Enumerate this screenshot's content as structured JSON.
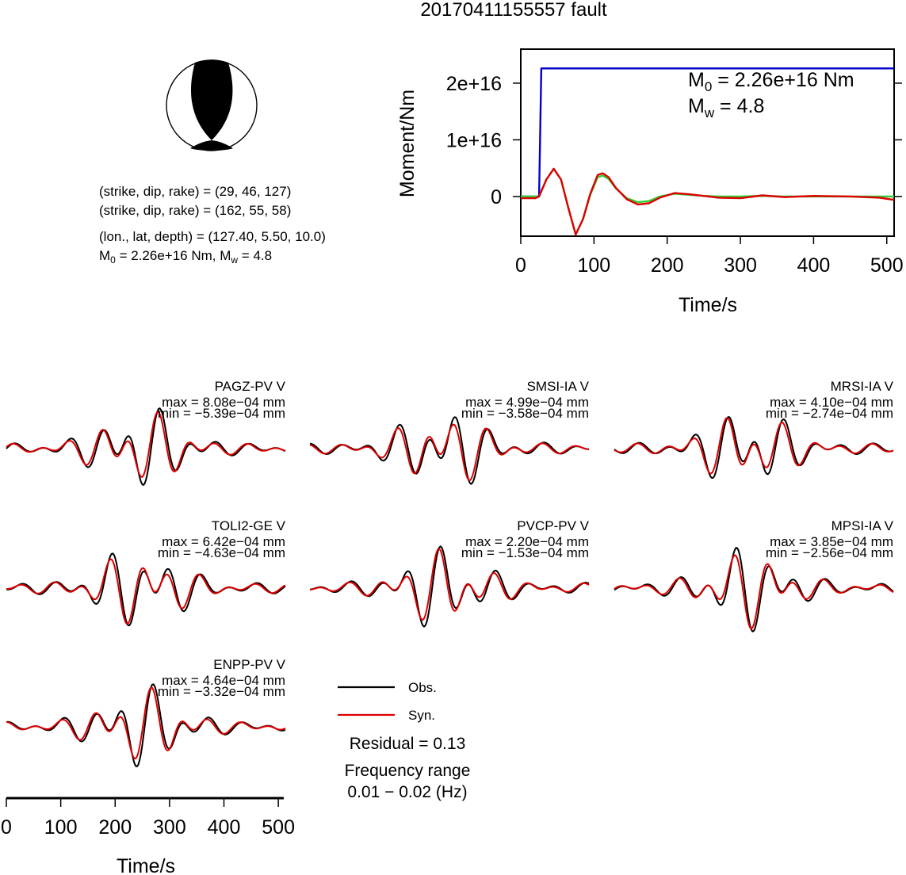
{
  "title": "20170411155557 fault",
  "beachball": {
    "nodal_planes": [
      {
        "strike": 29,
        "dip": 46,
        "rake": 127
      },
      {
        "strike": 162,
        "dip": 55,
        "rake": 58
      }
    ],
    "plane1_text": "(strike, dip, rake) = (29, 46, 127)",
    "plane2_text": "(strike, dip, rake) = (162, 55, 58)",
    "location_text": "(lon., lat, depth) = (127.40, 5.50, 10.0)",
    "moment_text": {
      "m0_sym": "M",
      "m0_sub": "0",
      "m0_val": " = 2.26e+16 Nm, ",
      "mw_sym": "M",
      "mw_sub": "w",
      "mw_val": " = 4.8"
    }
  },
  "moment_plot": {
    "ylabel": "Moment/Nm",
    "xlabel": "Time/s",
    "yticks": [
      "0",
      "1e+16",
      "2e+16"
    ],
    "xticks": [
      "0",
      "100",
      "200",
      "300",
      "400",
      "500"
    ],
    "m0_sym": "M",
    "m0_sub": "0",
    "m0_val": " = 2.26e+16 Nm",
    "mw_sym": "M",
    "mw_sub": "w",
    "mw_val": " = 4.8",
    "colors": {
      "cumulative": "#0000cc",
      "rate_obs": "#dd0000",
      "rate_syn": "#33cc33"
    }
  },
  "waveforms": [
    {
      "station": "PAGZ-PV V",
      "max": "max = 8.08e−04 mm",
      "min": "min = −5.39e−04 mm"
    },
    {
      "station": "SMSI-IA V",
      "max": "max = 4.99e−04 mm",
      "min": "min = −3.58e−04 mm"
    },
    {
      "station": "MRSI-IA V",
      "max": "max = 4.10e−04 mm",
      "min": "min = −2.74e−04 mm"
    },
    {
      "station": "TOLI2-GE V",
      "max": "max = 6.42e−04 mm",
      "min": "min = −4.63e−04 mm"
    },
    {
      "station": "PVCP-PV V",
      "max": "max = 2.20e−04 mm",
      "min": "min = −1.53e−04 mm"
    },
    {
      "station": "MPSI-IA V",
      "max": "max = 3.85e−04 mm",
      "min": "min = −2.56e−04 mm"
    },
    {
      "station": "ENPP-PV V",
      "max": "max = 4.64e−04 mm",
      "min": "min = −3.32e−04 mm"
    }
  ],
  "wave_axis": {
    "xlabel": "Time/s",
    "xticks": [
      "0",
      "100",
      "200",
      "300",
      "400",
      "500"
    ]
  },
  "legend": {
    "obs_label": "Obs.",
    "syn_label": "Syn.",
    "residual": "Residual = 0.13",
    "freq_label": "Frequency range",
    "freq_range": "0.01 − 0.02 (Hz)",
    "colors": {
      "obs": "#000000",
      "syn": "#dd0000"
    }
  },
  "chart_data": [
    {
      "type": "line",
      "title": "",
      "xlabel": "Time/s",
      "ylabel": "Moment/Nm",
      "xlim": [
        0,
        510
      ],
      "ylim": [
        -7000000000000000.0,
        2.6e+16
      ],
      "series": [
        {
          "x": [
            0,
            25,
            28,
            510
          ],
          "values": [
            0,
            0,
            2.26e+16,
            2.26e+16
          ]
        },
        {
          "x": [
            0,
            20,
            25,
            35,
            45,
            55,
            65,
            75,
            85,
            95,
            105,
            112,
            120,
            130,
            145,
            160,
            175,
            190,
            210,
            230,
            250,
            270,
            300,
            330,
            360,
            400,
            450,
            490,
            510
          ],
          "values": [
            -300000000000000.0,
            -300000000000000.0,
            0,
            3000000000000000.0,
            4900000000000000.0,
            3000000000000000.0,
            -2000000000000000.0,
            -6700000000000000.0,
            -4000000000000000.0,
            500000000000000.0,
            3800000000000000.0,
            4100000000000000.0,
            3400000000000000.0,
            1500000000000000.0,
            -500000000000000.0,
            -1400000000000000.0,
            -1200000000000000.0,
            -200000000000000.0,
            600000000000000.0,
            400000000000000.0,
            100000000000000.0,
            -200000000000000.0,
            -300000000000000.0,
            200000000000000.0,
            -100000000000000.0,
            100000000000000.0,
            0.0,
            -200000000000000.0,
            -600000000000000.0
          ]
        },
        {
          "x": [
            0,
            20,
            25,
            35,
            45,
            55,
            65,
            75,
            85,
            95,
            105,
            112,
            120,
            130,
            145,
            160,
            175,
            190,
            210,
            230,
            250,
            270,
            300,
            330,
            360,
            400,
            450,
            490,
            510
          ],
          "values": [
            0,
            0,
            0,
            3000000000000000.0,
            4900000000000000.0,
            3000000000000000.0,
            -2000000000000000.0,
            -6700000000000000.0,
            -4000000000000000.0,
            300000000000000.0,
            3400000000000000.0,
            3700000000000000.0,
            3100000000000000.0,
            1400000000000000.0,
            -300000000000000.0,
            -1000000000000000.0,
            -800000000000000.0,
            0.0,
            500000000000000.0,
            300000000000000.0,
            100000000000000.0,
            0.0,
            0.0,
            100000000000000.0,
            0.0,
            0.0,
            0.0,
            0.0,
            0.0
          ]
        }
      ]
    }
  ]
}
